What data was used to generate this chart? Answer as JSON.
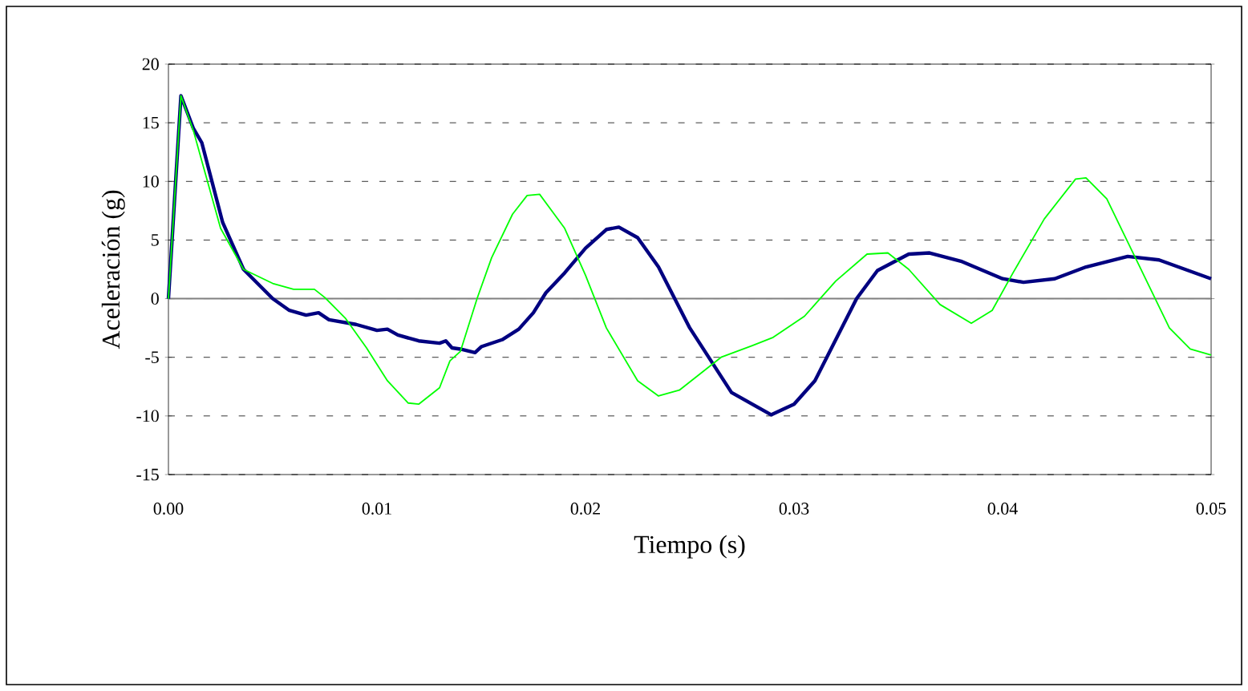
{
  "chart_data": {
    "type": "line",
    "xlabel": "Tiempo (s)",
    "ylabel": "Aceleración (g)",
    "xlim": [
      0,
      0.05
    ],
    "ylim": [
      -15,
      20
    ],
    "xticks": [
      {
        "value": 0,
        "label": "0.00"
      },
      0.01,
      0.02,
      0.03,
      0.04,
      0.05
    ],
    "yticks": [
      -15,
      -10,
      -5,
      0,
      5,
      10,
      15,
      20
    ],
    "grid": "y",
    "marker": "none",
    "line_style": "solid",
    "ref_lines": [
      {
        "axis": "y",
        "value": 0,
        "color": "#808080"
      }
    ],
    "series": [
      {
        "color": "#000080",
        "x": [
          0,
          0.0006,
          0.0012,
          0.0016,
          0.0026,
          0.0036,
          0.005,
          0.0058,
          0.0066,
          0.0072,
          0.0077,
          0.009,
          0.01,
          0.0105,
          0.011,
          0.012,
          0.013,
          0.0133,
          0.0136,
          0.014,
          0.0147,
          0.015,
          0.016,
          0.0168,
          0.0175,
          0.0181,
          0.019,
          0.02,
          0.021,
          0.0216,
          0.0225,
          0.0235,
          0.025,
          0.027,
          0.0289,
          0.03,
          0.031,
          0.032,
          0.033,
          0.034,
          0.0355,
          0.0365,
          0.038,
          0.04,
          0.041,
          0.0425,
          0.044,
          0.046,
          0.0475,
          0.05
        ],
        "values": [
          0,
          17.3,
          14.5,
          13.3,
          6.5,
          2.5,
          0,
          -1,
          -1.4,
          -1.2,
          -1.8,
          -2.2,
          -2.7,
          -2.6,
          -3.1,
          -3.6,
          -3.8,
          -3.6,
          -4.2,
          -4.3,
          -4.6,
          -4.1,
          -3.5,
          -2.6,
          -1.2,
          0.5,
          2.2,
          4.3,
          5.9,
          6.1,
          5.2,
          2.7,
          -2.5,
          -8,
          -9.9,
          -9,
          -7,
          -3.5,
          0,
          2.4,
          3.8,
          3.9,
          3.2,
          1.7,
          1.4,
          1.7,
          2.7,
          3.6,
          3.3,
          1.7
        ]
      },
      {
        "color": "#00ff00",
        "x": [
          0,
          0.0006,
          0.0012,
          0.0025,
          0.0036,
          0.005,
          0.006,
          0.007,
          0.0075,
          0.0085,
          0.0095,
          0.0105,
          0.0115,
          0.012,
          0.013,
          0.0135,
          0.014,
          0.0148,
          0.0155,
          0.0165,
          0.0172,
          0.0178,
          0.019,
          0.02,
          0.021,
          0.0225,
          0.0235,
          0.0245,
          0.0265,
          0.028,
          0.029,
          0.0305,
          0.032,
          0.0335,
          0.0345,
          0.0355,
          0.037,
          0.0385,
          0.0395,
          0.0405,
          0.042,
          0.0435,
          0.044,
          0.045,
          0.0465,
          0.048,
          0.049,
          0.05
        ],
        "values": [
          0,
          17.3,
          14.3,
          6,
          2.5,
          1.3,
          0.8,
          0.8,
          0.1,
          -1.7,
          -4.2,
          -7,
          -8.9,
          -9,
          -7.6,
          -5.3,
          -4.5,
          0,
          3.5,
          7.2,
          8.8,
          8.9,
          6,
          2,
          -2.5,
          -7,
          -8.3,
          -7.8,
          -5,
          -4,
          -3.3,
          -1.5,
          1.5,
          3.8,
          3.9,
          2.5,
          -0.5,
          -2.1,
          -1,
          2.2,
          6.8,
          10.2,
          10.3,
          8.5,
          3,
          -2.5,
          -4.3,
          -4.8
        ]
      }
    ]
  }
}
